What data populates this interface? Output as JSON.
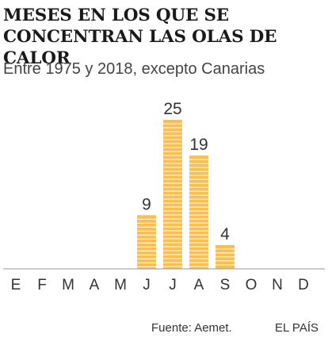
{
  "header": {
    "title": "Meses en los que se concentran las olas de calor",
    "subtitle": "Entre 1975 y 2018, excepto Canarias"
  },
  "footer": {
    "source": "Fuente: Aemet.",
    "brand": "EL PAÍS"
  },
  "colors": {
    "bar": "#FDBE4D",
    "bar_stripe": "#FFFFFF",
    "baseline": "#999999",
    "text": "#333333"
  },
  "chart_data": {
    "type": "bar",
    "title": "Meses en los que se concentran las olas de calor",
    "subtitle": "Entre 1975 y 2018, excepto Canarias",
    "xlabel": "",
    "ylabel": "",
    "categories": [
      "E",
      "F",
      "M",
      "A",
      "M",
      "J",
      "J",
      "A",
      "S",
      "O",
      "N",
      "D"
    ],
    "values": [
      0,
      0,
      0,
      0,
      0,
      9,
      25,
      19,
      4,
      0,
      0,
      0
    ],
    "data_labels": [
      "",
      "",
      "",
      "",
      "",
      "9",
      "25",
      "19",
      "4",
      "",
      "",
      ""
    ],
    "ylim": [
      0,
      25
    ],
    "grid": false,
    "legend": "none"
  }
}
